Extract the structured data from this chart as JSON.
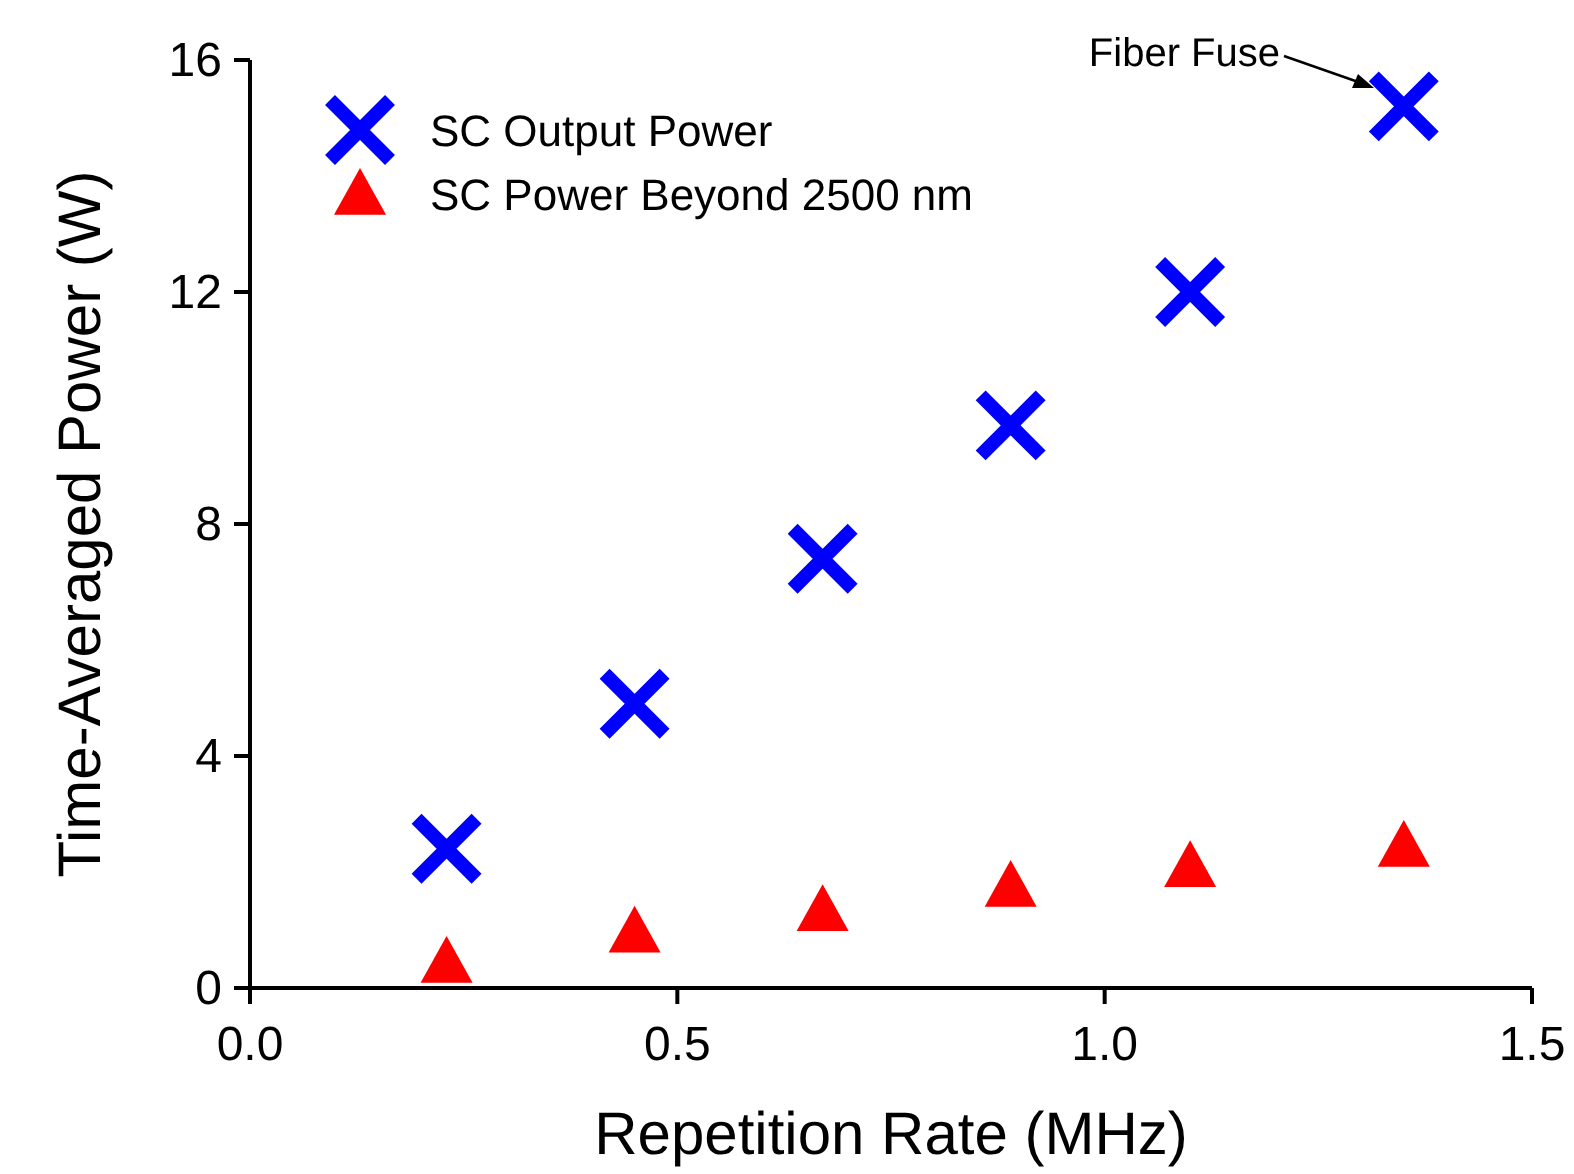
{
  "chart_data": {
    "type": "scatter",
    "xlabel": "Repetition Rate (MHz)",
    "ylabel": "Time-Averaged Power (W)",
    "xlim": [
      0,
      1.5
    ],
    "xticks": [
      {
        "value": 0,
        "label": "0.0"
      },
      {
        "value": 0.5,
        "label": "0.5"
      },
      {
        "value": 1,
        "label": "1.0"
      },
      {
        "value": 1.5,
        "label": "1.5"
      }
    ],
    "ylim": [
      0,
      16
    ],
    "yticks": [
      0,
      4,
      8,
      12,
      16
    ],
    "grid": false,
    "legend": "top left",
    "annotations": [
      "Fiber Fuse"
    ],
    "series": [
      {
        "name": "SC Output Power",
        "color": "#0000ff",
        "marker": "cross",
        "x": [
          0.23,
          0.45,
          0.67,
          0.89,
          1.1,
          1.35
        ],
        "values": [
          2.4,
          4.9,
          7.4,
          9.7,
          12.0,
          15.2
        ]
      },
      {
        "name": "SC Power Beyond 2500 nm",
        "color": "#ff0000",
        "marker": "triangle",
        "x": [
          0.23,
          0.45,
          0.67,
          0.89,
          1.1,
          1.35
        ],
        "values": [
          0.45,
          0.97,
          1.34,
          1.76,
          2.1,
          2.45
        ]
      }
    ]
  }
}
